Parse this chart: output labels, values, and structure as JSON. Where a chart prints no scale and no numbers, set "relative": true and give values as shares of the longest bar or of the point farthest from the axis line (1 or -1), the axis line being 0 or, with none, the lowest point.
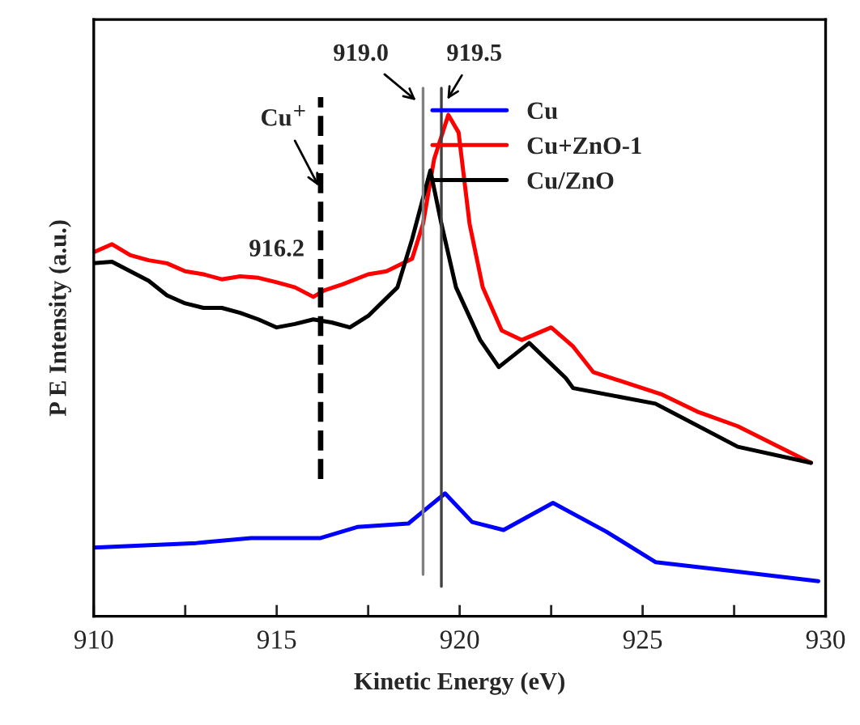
{
  "chart_data": {
    "type": "line",
    "xlabel": "Kinetic Energy (eV)",
    "ylabel": "P E Intensity (a.u.)",
    "relative": true,
    "xlim": [
      910,
      930
    ],
    "xticks": [
      910,
      {
        "value": 912.5,
        "label": null
      },
      915,
      {
        "value": 917.5,
        "label": null
      },
      920,
      {
        "value": 922.5,
        "label": null
      },
      925,
      {
        "value": 927.5,
        "label": null
      },
      930
    ],
    "series": [
      {
        "name": "Cu",
        "color": "#0000ff",
        "x": [
          910,
          912.8,
          914.3,
          916.2,
          917.2,
          918.6,
          919.6,
          920.34,
          921.2,
          922.55,
          924.0,
          925.35,
          927.6,
          929.8
        ],
        "values": [
          0.137,
          0.146,
          0.156,
          0.156,
          0.178,
          0.185,
          0.245,
          0.188,
          0.172,
          0.226,
          0.169,
          0.108,
          0.089,
          0.07
        ]
      },
      {
        "name": "Cu+ZnO-1",
        "color": "#ff0000",
        "x": [
          910,
          910.5,
          911,
          911.5,
          912,
          912.5,
          913,
          913.5,
          914,
          914.5,
          915,
          915.5,
          916,
          916.3,
          916.8,
          917.5,
          918,
          918.7,
          919.0,
          919.3,
          919.69,
          919.97,
          920.27,
          920.63,
          921.15,
          921.7,
          922.5,
          923.1,
          923.65,
          925.5,
          926.5,
          927.6,
          929.6
        ],
        "values": [
          0.726,
          0.742,
          0.72,
          0.71,
          0.704,
          0.688,
          0.682,
          0.672,
          0.678,
          0.675,
          0.666,
          0.656,
          0.637,
          0.65,
          0.662,
          0.682,
          0.688,
          0.713,
          0.783,
          0.911,
          1.0,
          0.965,
          0.783,
          0.656,
          0.57,
          0.551,
          0.576,
          0.538,
          0.487,
          0.443,
          0.408,
          0.379,
          0.306
        ]
      },
      {
        "name": "Cu/ZnO",
        "color": "#000000",
        "x": [
          910,
          910.5,
          911,
          911.5,
          912,
          912.5,
          913,
          913.5,
          914,
          914.5,
          915,
          915.5,
          916,
          916.5,
          917,
          917.5,
          918.3,
          918.7,
          919.2,
          919.5,
          919.9,
          920.56,
          921.07,
          921.9,
          922.9,
          923.1,
          925.35,
          927.6,
          929.6
        ],
        "values": [
          0.704,
          0.707,
          0.688,
          0.669,
          0.64,
          0.624,
          0.615,
          0.615,
          0.605,
          0.592,
          0.576,
          0.583,
          0.592,
          0.586,
          0.576,
          0.599,
          0.656,
          0.752,
          0.889,
          0.783,
          0.656,
          0.551,
          0.497,
          0.545,
          0.475,
          0.455,
          0.424,
          0.338,
          0.306
        ]
      }
    ],
    "ref_lines": [
      {
        "axis": "x",
        "value": 916.2,
        "label": "916.2",
        "color": "#000000",
        "line_style": "dashed"
      },
      {
        "axis": "x",
        "value": 919.0,
        "label": "919.0",
        "color": "#808080",
        "line_style": "solid"
      },
      {
        "axis": "x",
        "value": 919.5,
        "label": "919.5",
        "color": "#404040",
        "line_style": "solid"
      }
    ],
    "annotations": [
      {
        "text": "Cu$^{+}$",
        "x": 916.2,
        "y": 0.85
      }
    ],
    "legend": "top right",
    "grid": false
  }
}
